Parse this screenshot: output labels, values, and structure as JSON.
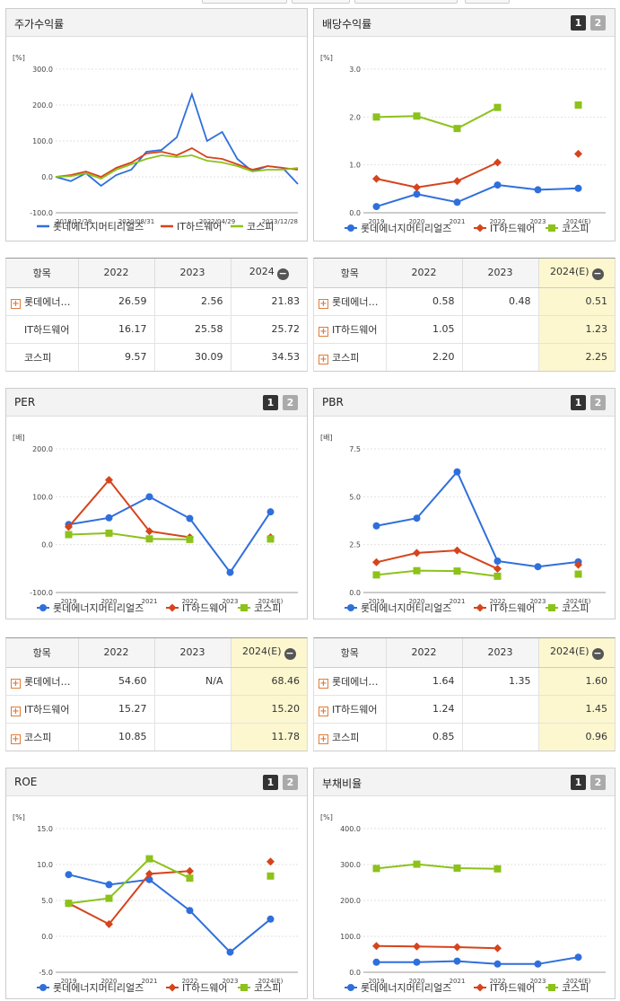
{
  "colors": {
    "series1": "#2f6fdc",
    "series2": "#d5441c",
    "series3": "#8cc21a"
  },
  "legend": {
    "labels": [
      "롯데에너지머티리얼즈",
      "IT하드웨어",
      "코스피"
    ]
  },
  "page_buttons": [
    "1",
    "2"
  ],
  "panels": {
    "stock_return": {
      "title": "주가수익률",
      "unit": "[%]",
      "y_ticks": [
        "300.0",
        "200.0",
        "100.0",
        "0.0",
        "-100.0"
      ],
      "x_ticks": [
        "2018/12/28",
        "2020/08/31",
        "2022/04/29",
        "2023/12/28"
      ]
    },
    "dividend": {
      "title": "배당수익률",
      "unit": "[%]",
      "y_ticks": [
        "3.0",
        "2.0",
        "1.0",
        "0.0"
      ],
      "x_ticks": [
        "2019",
        "2020",
        "2021",
        "2022",
        "2023",
        "2024(E)"
      ]
    },
    "per": {
      "title": "PER",
      "unit": "[배]",
      "y_ticks": [
        "200.0",
        "100.0",
        "0.0",
        "-100.0"
      ],
      "x_ticks": [
        "2019",
        "2020",
        "2021",
        "2022",
        "2023",
        "2024(E)"
      ]
    },
    "pbr": {
      "title": "PBR",
      "unit": "[배]",
      "y_ticks": [
        "7.5",
        "5.0",
        "2.5",
        "0.0"
      ],
      "x_ticks": [
        "2019",
        "2020",
        "2021",
        "2022",
        "2023",
        "2024(E)"
      ]
    },
    "roe": {
      "title": "ROE",
      "unit": "[%]",
      "y_ticks": [
        "15.0",
        "10.0",
        "5.0",
        "0.0",
        "-5.0"
      ],
      "x_ticks": [
        "2019",
        "2020",
        "2021",
        "2022",
        "2023",
        "2024(E)"
      ]
    },
    "debt": {
      "title": "부채비율",
      "unit": "[%]",
      "y_ticks": [
        "400.0",
        "300.0",
        "200.0",
        "100.0",
        "0.0"
      ],
      "x_ticks": [
        "2019",
        "2020",
        "2021",
        "2022",
        "2023",
        "2024(E)"
      ]
    }
  },
  "tables": {
    "stock_return": {
      "headers": [
        "항목",
        "2022",
        "2023",
        "2024"
      ],
      "rows": [
        {
          "label": "롯데에너…",
          "v": [
            "26.59",
            "2.56",
            "21.83"
          ]
        },
        {
          "label": "IT하드웨어",
          "v": [
            "16.17",
            "25.58",
            "25.72"
          ]
        },
        {
          "label": "코스피",
          "v": [
            "9.57",
            "30.09",
            "34.53"
          ]
        }
      ]
    },
    "dividend": {
      "headers": [
        "항목",
        "2022",
        "2023",
        "2024(E)"
      ],
      "rows": [
        {
          "label": "롯데에너…",
          "v": [
            "0.58",
            "0.48",
            "0.51"
          ]
        },
        {
          "label": "IT하드웨어",
          "v": [
            "1.05",
            "",
            "1.23"
          ]
        },
        {
          "label": "코스피",
          "v": [
            "2.20",
            "",
            "2.25"
          ]
        }
      ]
    },
    "per": {
      "headers": [
        "항목",
        "2022",
        "2023",
        "2024(E)"
      ],
      "rows": [
        {
          "label": "롯데에너…",
          "v": [
            "54.60",
            "N/A",
            "68.46"
          ]
        },
        {
          "label": "IT하드웨어",
          "v": [
            "15.27",
            "",
            "15.20"
          ]
        },
        {
          "label": "코스피",
          "v": [
            "10.85",
            "",
            "11.78"
          ]
        }
      ]
    },
    "pbr": {
      "headers": [
        "항목",
        "2022",
        "2023",
        "2024(E)"
      ],
      "rows": [
        {
          "label": "롯데에너…",
          "v": [
            "1.64",
            "1.35",
            "1.60"
          ]
        },
        {
          "label": "IT하드웨어",
          "v": [
            "1.24",
            "",
            "1.45"
          ]
        },
        {
          "label": "코스피",
          "v": [
            "0.85",
            "",
            "0.96"
          ]
        }
      ]
    }
  },
  "chart_data": [
    {
      "id": "stock_return",
      "type": "line",
      "title": "주가수익률",
      "ylabel": "[%]",
      "ylim": [
        -100,
        300
      ],
      "x": [
        "2018/12/28",
        "2019/06",
        "2019/12",
        "2020/06",
        "2020/08/31",
        "2020/12",
        "2021/04",
        "2021/08",
        "2021/10",
        "2021/12",
        "2022/02",
        "2022/04/29",
        "2022/08",
        "2022/12",
        "2023/04",
        "2023/08",
        "2023/12/28"
      ],
      "series": [
        {
          "name": "롯데에너지머티리얼즈",
          "values": [
            0,
            -12,
            10,
            -25,
            5,
            20,
            70,
            75,
            110,
            230,
            100,
            125,
            50,
            15,
            30,
            25,
            -20
          ]
        },
        {
          "name": "IT하드웨어",
          "values": [
            0,
            5,
            15,
            0,
            25,
            40,
            65,
            70,
            60,
            80,
            55,
            50,
            35,
            20,
            30,
            25,
            20
          ]
        },
        {
          "name": "코스피",
          "values": [
            0,
            2,
            10,
            -5,
            20,
            35,
            50,
            60,
            55,
            60,
            45,
            40,
            30,
            15,
            20,
            20,
            25
          ]
        }
      ]
    },
    {
      "id": "dividend",
      "type": "line",
      "title": "배당수익률",
      "ylabel": "[%]",
      "ylim": [
        0,
        3
      ],
      "x": [
        "2019",
        "2020",
        "2021",
        "2022",
        "2023",
        "2024(E)"
      ],
      "series": [
        {
          "name": "롯데에너지머티리얼즈",
          "values": [
            0.13,
            0.39,
            0.22,
            0.58,
            0.48,
            0.51
          ]
        },
        {
          "name": "IT하드웨어",
          "values": [
            0.71,
            0.53,
            0.66,
            1.05,
            null,
            1.23
          ]
        },
        {
          "name": "코스피",
          "values": [
            2.0,
            2.02,
            1.76,
            2.2,
            null,
            2.25
          ]
        }
      ]
    },
    {
      "id": "per",
      "type": "line",
      "title": "PER",
      "ylabel": "[배]",
      "ylim": [
        -100,
        200
      ],
      "x": [
        "2019",
        "2020",
        "2021",
        "2022",
        "2023",
        "2024(E)"
      ],
      "series": [
        {
          "name": "롯데에너지머티리얼즈",
          "values": [
            42,
            56,
            100,
            54.6,
            -58,
            68.46
          ]
        },
        {
          "name": "IT하드웨어",
          "values": [
            37,
            135,
            28,
            15.27,
            null,
            15.2
          ]
        },
        {
          "name": "코스피",
          "values": [
            21,
            24,
            12,
            10.85,
            null,
            11.78
          ]
        }
      ]
    },
    {
      "id": "pbr",
      "type": "line",
      "title": "PBR",
      "ylabel": "[배]",
      "ylim": [
        0,
        7.5
      ],
      "x": [
        "2019",
        "2020",
        "2021",
        "2022",
        "2023",
        "2024(E)"
      ],
      "series": [
        {
          "name": "롯데에너지머티리얼즈",
          "values": [
            3.48,
            3.88,
            6.3,
            1.64,
            1.35,
            1.6
          ]
        },
        {
          "name": "IT하드웨어",
          "values": [
            1.58,
            2.07,
            2.2,
            1.24,
            null,
            1.45
          ]
        },
        {
          "name": "코스피",
          "values": [
            0.92,
            1.14,
            1.12,
            0.85,
            null,
            0.96
          ]
        }
      ]
    },
    {
      "id": "roe",
      "type": "line",
      "title": "ROE",
      "ylabel": "[%]",
      "ylim": [
        -5,
        15
      ],
      "x": [
        "2019",
        "2020",
        "2021",
        "2022",
        "2023",
        "2024(E)"
      ],
      "series": [
        {
          "name": "롯데에너지머티리얼즈",
          "values": [
            8.6,
            7.2,
            7.9,
            3.6,
            -2.2,
            2.4
          ]
        },
        {
          "name": "IT하드웨어",
          "values": [
            4.6,
            1.7,
            8.7,
            9.1,
            null,
            10.4
          ]
        },
        {
          "name": "코스피",
          "values": [
            4.6,
            5.3,
            10.8,
            8.1,
            null,
            8.4
          ]
        }
      ]
    },
    {
      "id": "debt",
      "type": "line",
      "title": "부채비율",
      "ylabel": "[%]",
      "ylim": [
        0,
        400
      ],
      "x": [
        "2019",
        "2020",
        "2021",
        "2022",
        "2023",
        "2024(E)"
      ],
      "series": [
        {
          "name": "롯데에너지머티리얼즈",
          "values": [
            28,
            28,
            31,
            23,
            23,
            42
          ]
        },
        {
          "name": "IT하드웨어",
          "values": [
            73,
            72,
            70,
            67,
            null,
            null
          ]
        },
        {
          "name": "코스피",
          "values": [
            289,
            301,
            290,
            288,
            null,
            null
          ]
        }
      ]
    }
  ]
}
